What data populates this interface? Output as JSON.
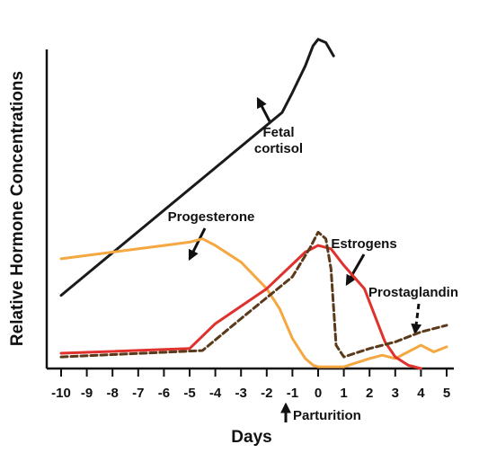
{
  "chart_data": {
    "type": "line",
    "x_label": "Days",
    "y_label": "Relative Hormone Concentrations",
    "xlim": [
      -10,
      5
    ],
    "xticks": [
      -10,
      -9,
      -8,
      -7,
      -6,
      -5,
      -4,
      -3,
      -2,
      -1,
      0,
      1,
      2,
      3,
      4,
      5
    ],
    "ylim": [
      0,
      100
    ],
    "series": [
      {
        "name": "Fetal cortisol",
        "color": "#1a1a1a",
        "dashed": false,
        "x": [
          -10,
          -1.4,
          -1,
          -0.5,
          -0.2,
          0,
          0.3,
          0.6
        ],
        "values": [
          22,
          77,
          83,
          91,
          97,
          99,
          98,
          94
        ]
      },
      {
        "name": "Progesterone",
        "color": "#f5a742",
        "dashed": false,
        "x": [
          -10,
          -6,
          -5,
          -4.5,
          -4,
          -3,
          -2,
          -1.5,
          -1,
          -0.5,
          -0.2,
          0,
          1,
          2,
          2.5,
          3,
          3.5,
          4,
          4.5,
          5
        ],
        "values": [
          33,
          37,
          38,
          39,
          37,
          32,
          24,
          18,
          9,
          3,
          1,
          0.5,
          0.5,
          3,
          4,
          3,
          5,
          7,
          5,
          6.5
        ]
      },
      {
        "name": "Estrogens",
        "color": "#e0312d",
        "dashed": false,
        "x": [
          -10,
          -5,
          -4,
          -2,
          -0.5,
          0,
          0.5,
          1,
          1.8,
          2.2,
          2.6,
          3,
          3.5,
          4
        ],
        "values": [
          4.6,
          6,
          13.5,
          24,
          35,
          37,
          36,
          31,
          24,
          16,
          8,
          3.5,
          1,
          0
        ]
      },
      {
        "name": "Prostaglandin",
        "color": "#5a3a1a",
        "dashed": true,
        "x": [
          -10,
          -4.5,
          -3,
          -1,
          -0.3,
          0,
          0.3,
          0.5,
          0.7,
          1,
          2,
          3,
          4,
          5
        ],
        "values": [
          3.5,
          5.4,
          15,
          27.6,
          36.5,
          41,
          39,
          30,
          7,
          3.5,
          6,
          8,
          11,
          13
        ]
      }
    ],
    "annotations": [
      {
        "lines": [
          "Fetal",
          "cortisol"
        ]
      },
      {
        "lines": [
          "Progesterone"
        ]
      },
      {
        "lines": [
          "Estrogens"
        ]
      },
      {
        "lines": [
          "Prostaglandin"
        ]
      },
      {
        "lines": [
          "Parturition"
        ]
      }
    ]
  }
}
